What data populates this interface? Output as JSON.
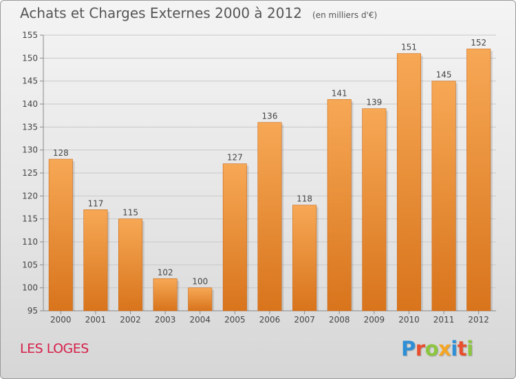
{
  "header": {
    "title": "Achats et Charges Externes 2000 à 2012",
    "subtitle": "(en milliers d'€)"
  },
  "footer": {
    "town": "LES LOGES",
    "brand": {
      "text": "Proxiti",
      "letters": [
        {
          "ch": "P",
          "color": "#2f8fd6"
        },
        {
          "ch": "r",
          "color": "#e94f2e"
        },
        {
          "ch": "o",
          "color": "#8cc63f"
        },
        {
          "ch": "x",
          "color": "#f5a623"
        },
        {
          "ch": "i",
          "color": "#2f8fd6"
        },
        {
          "ch": "t",
          "color": "#e94f2e"
        },
        {
          "ch": "i",
          "color": "#8cc63f"
        }
      ]
    }
  },
  "chart_data": {
    "type": "bar",
    "title": "Achats et Charges Externes 2000 à 2012",
    "subtitle": "(en milliers d'€)",
    "categories": [
      "2000",
      "2001",
      "2002",
      "2003",
      "2004",
      "2005",
      "2006",
      "2007",
      "2008",
      "2009",
      "2010",
      "2011",
      "2012"
    ],
    "values": [
      128,
      117,
      115,
      102,
      100,
      127,
      136,
      118,
      141,
      139,
      151,
      145,
      152
    ],
    "data_labels": [
      "128",
      "117",
      "115",
      "102",
      "100",
      "127",
      "136",
      "118",
      "141",
      "139",
      "151",
      "145",
      "152"
    ],
    "ylim": [
      95,
      155
    ],
    "yticks": [
      95,
      100,
      105,
      110,
      115,
      120,
      125,
      130,
      135,
      140,
      145,
      150,
      155
    ],
    "xlabel": "",
    "ylabel": "",
    "grid": true,
    "legend": "none",
    "colors": {
      "bar_top": "#f7a855",
      "bar_bottom": "#d8741c",
      "grid": "#c8c8c8",
      "text": "#444444"
    }
  }
}
